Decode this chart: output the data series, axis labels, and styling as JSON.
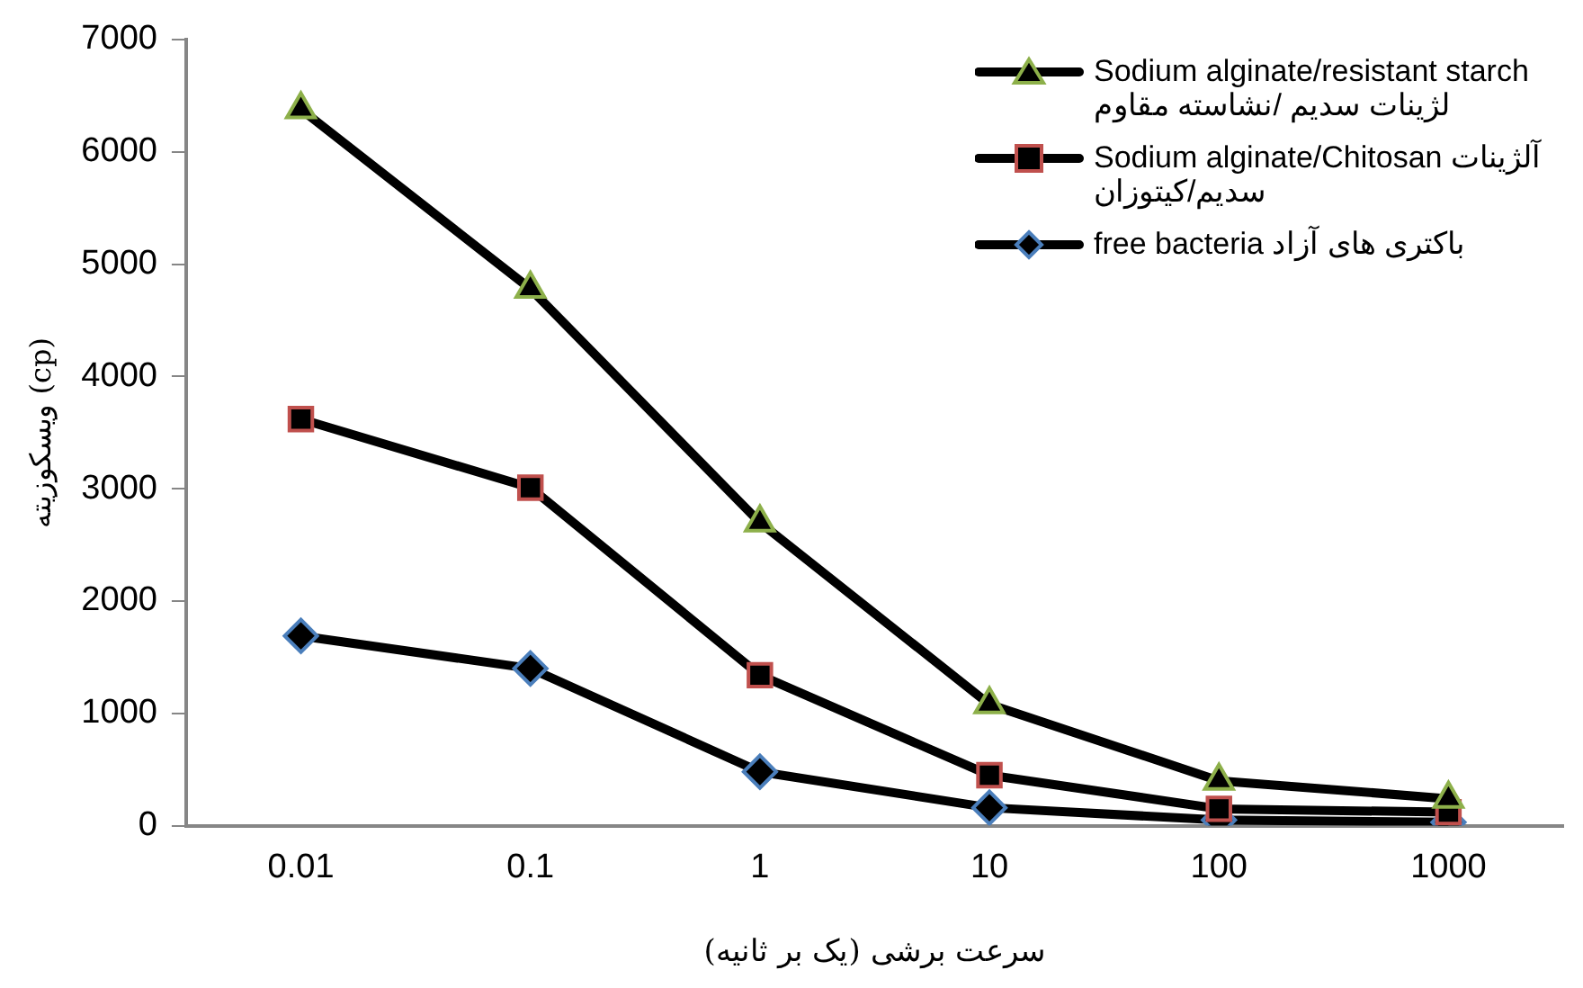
{
  "chart_data": {
    "type": "line",
    "xlabel": "سرعت برشی (یک بر ثانیه)",
    "ylabel": "ویسکوزیته (cp)",
    "categories": [
      "0.01",
      "0.1",
      "1",
      "10",
      "100",
      "1000"
    ],
    "series": [
      {
        "name": "Sodium alginate/resistant starch لژینات سدیم /نشاسته مقاوم",
        "color": "#8db04a",
        "marker": "triangle",
        "values": [
          6380,
          4780,
          2700,
          1080,
          400,
          240
        ]
      },
      {
        "name": "Sodium alginate/Chitosan آلژینات سدیم/کیتوزان",
        "color": "#c0504d",
        "marker": "square",
        "values": [
          3620,
          3010,
          1340,
          450,
          150,
          120
        ]
      },
      {
        "name": "free bacteria باکتری های آزاد",
        "color": "#4a7ebb",
        "marker": "diamond",
        "values": [
          1690,
          1400,
          480,
          160,
          50,
          30
        ]
      }
    ],
    "ylim": [
      0,
      7000
    ],
    "yticks": [
      0,
      1000,
      2000,
      3000,
      4000,
      5000,
      6000,
      7000
    ],
    "grid": false,
    "legend": "top right"
  }
}
